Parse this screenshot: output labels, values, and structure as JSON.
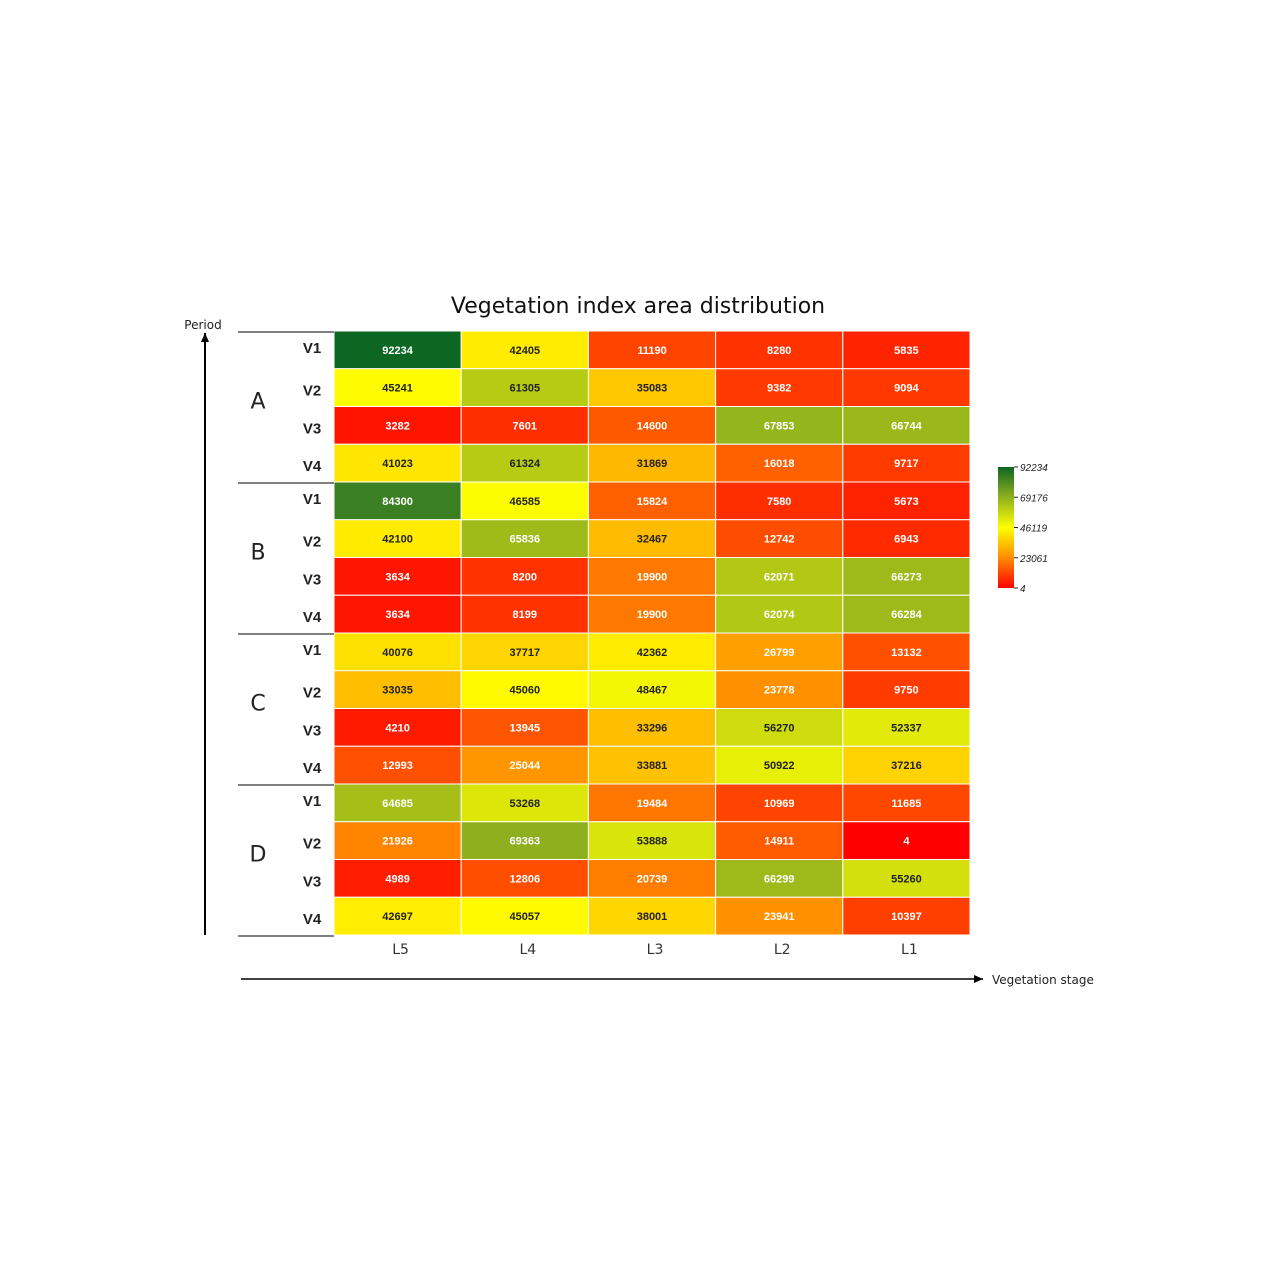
{
  "chart_data": {
    "type": "heatmap",
    "title": "Vegetation index area distribution",
    "xlabel": "Vegetation stage",
    "ylabel": "Period",
    "columns": [
      "L5",
      "L4",
      "L3",
      "L2",
      "L1"
    ],
    "groups": [
      {
        "name": "A",
        "rows": [
          {
            "label": "V1",
            "values": [
              92234,
              42405,
              11190,
              8280,
              5835
            ]
          },
          {
            "label": "V2",
            "values": [
              45241,
              61305,
              35083,
              9382,
              9094
            ]
          },
          {
            "label": "V3",
            "values": [
              3282,
              7601,
              14600,
              67853,
              66744
            ]
          },
          {
            "label": "V4",
            "values": [
              41023,
              61324,
              31869,
              16018,
              9717
            ]
          }
        ]
      },
      {
        "name": "B",
        "rows": [
          {
            "label": "V1",
            "values": [
              84300,
              46585,
              15824,
              7580,
              5673
            ]
          },
          {
            "label": "V2",
            "values": [
              42100,
              65836,
              32467,
              12742,
              6943
            ]
          },
          {
            "label": "V3",
            "values": [
              3634,
              8200,
              19900,
              62071,
              66273
            ]
          },
          {
            "label": "V4",
            "values": [
              3634,
              8199,
              19900,
              62074,
              66284
            ]
          }
        ]
      },
      {
        "name": "C",
        "rows": [
          {
            "label": "V1",
            "values": [
              40076,
              37717,
              42362,
              26799,
              13132
            ]
          },
          {
            "label": "V2",
            "values": [
              33035,
              45060,
              48467,
              23778,
              9750
            ]
          },
          {
            "label": "V3",
            "values": [
              4210,
              13945,
              33296,
              56270,
              52337
            ]
          },
          {
            "label": "V4",
            "values": [
              12993,
              25044,
              33881,
              50922,
              37216
            ]
          }
        ]
      },
      {
        "name": "D",
        "rows": [
          {
            "label": "V1",
            "values": [
              64685,
              53268,
              19484,
              10969,
              11685
            ]
          },
          {
            "label": "V2",
            "values": [
              21926,
              69363,
              53888,
              14911,
              4
            ]
          },
          {
            "label": "V3",
            "values": [
              4989,
              12806,
              20739,
              66299,
              55260
            ]
          },
          {
            "label": "V4",
            "values": [
              42697,
              45057,
              38001,
              23941,
              10397
            ]
          }
        ]
      }
    ],
    "color_scale": {
      "min": 4,
      "max": 92234,
      "ticks": [
        "92234",
        "69176",
        "46119",
        "23061",
        "4"
      ],
      "stops": [
        {
          "value": 0.0,
          "color": "#ff0000"
        },
        {
          "value": 0.25,
          "color": "#ff8c00"
        },
        {
          "value": 0.5,
          "color": "#ffff00"
        },
        {
          "value": 0.75,
          "color": "#8fb01e"
        },
        {
          "value": 1.0,
          "color": "#0d6622"
        }
      ]
    },
    "legend_position": "right"
  }
}
